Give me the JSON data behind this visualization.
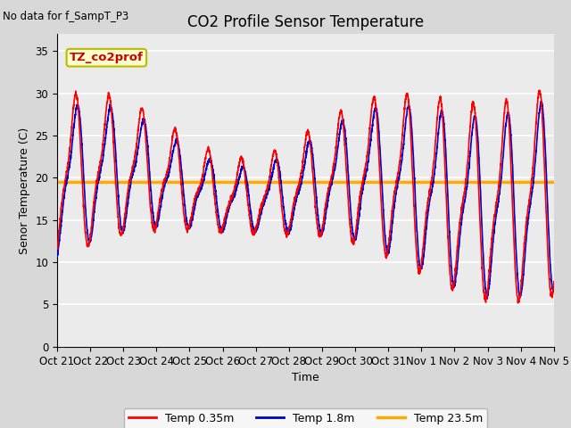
{
  "title": "CO2 Profile Sensor Temperature",
  "subtitle": "No data for f_SampT_P3",
  "xlabel": "Time",
  "ylabel": "Senor Temperature (C)",
  "ylim": [
    0,
    37
  ],
  "yticks": [
    0,
    5,
    10,
    15,
    20,
    25,
    30,
    35
  ],
  "fig_bg": "#d8d8d8",
  "plot_bg": "#ebebeb",
  "grid_color": "#ffffff",
  "legend_labels": [
    "Temp 0.35m",
    "Temp 1.8m",
    "Temp 23.5m"
  ],
  "legend_colors": [
    "#ff0000",
    "#0000cc",
    "#ffaa00"
  ],
  "constant_temp": 19.5,
  "annotation_text": "TZ_co2prof",
  "annotation_color": "#cc0000",
  "annotation_bg": "#ffffcc",
  "annotation_border": "#bbbb00",
  "title_fontsize": 12,
  "label_fontsize": 9,
  "tick_fontsize": 8.5
}
